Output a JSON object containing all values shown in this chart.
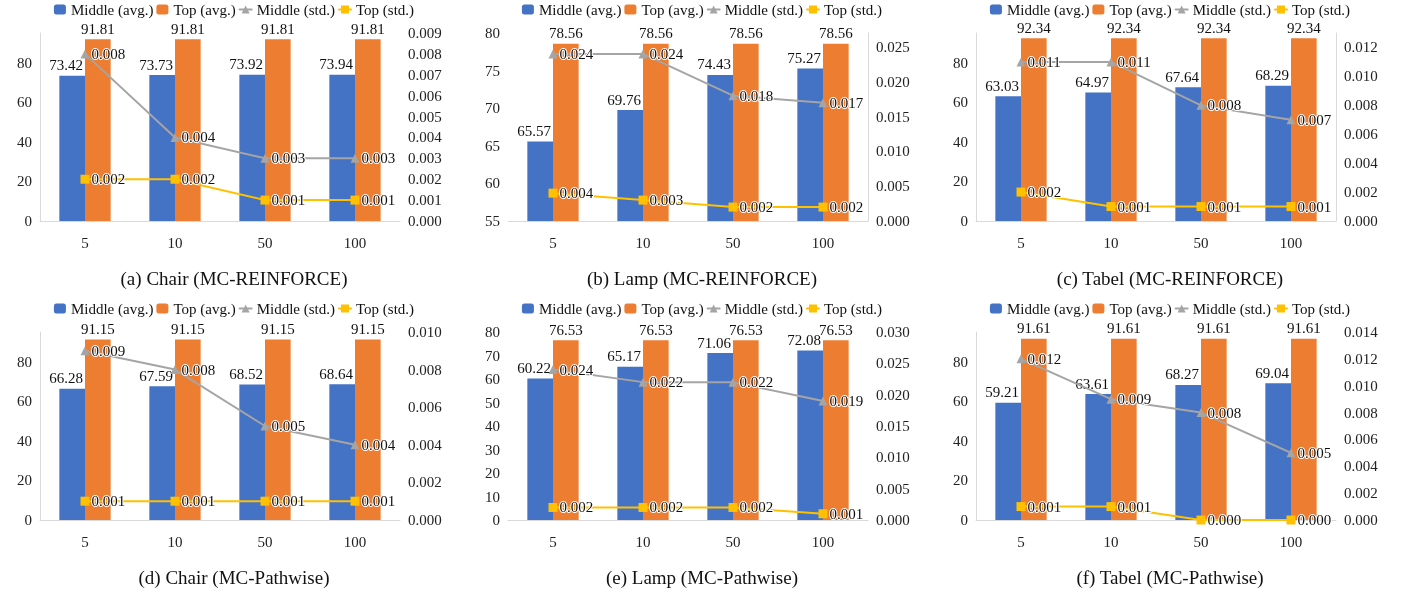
{
  "chart_data": [
    {
      "type": "bar",
      "title": "(a) Chair (MC-REINFORCE)",
      "categories": [
        "5",
        "10",
        "50",
        "100"
      ],
      "legend": "top",
      "data_labels": true,
      "ylim": [
        0,
        95
      ],
      "yticks": [
        0,
        20,
        40,
        60,
        80
      ],
      "y2lim": [
        0,
        0.009
      ],
      "y2ticks": [
        {
          "value": 0,
          "label": "0.000"
        },
        {
          "value": 0.001,
          "label": "0.001"
        },
        {
          "value": 0.002,
          "label": "0.002"
        },
        {
          "value": 0.003,
          "label": "0.003"
        },
        {
          "value": 0.004,
          "label": "0.004"
        },
        {
          "value": 0.005,
          "label": "0.005"
        },
        {
          "value": 0.006,
          "label": "0.006"
        },
        {
          "value": 0.007,
          "label": "0.007"
        },
        {
          "value": 0.008,
          "label": "0.008"
        },
        {
          "value": 0.009,
          "label": "0.009"
        }
      ],
      "series": [
        {
          "name": "Middle (avg.)",
          "color": "#4472c4",
          "values": [
            73.42,
            73.73,
            73.92,
            73.94
          ]
        },
        {
          "name": "Top (avg.)",
          "color": "#ed7d31",
          "values": [
            91.81,
            91.81,
            91.81,
            91.81
          ]
        },
        {
          "name": "Middle (std.)",
          "type": "line",
          "axis": "y2",
          "marker": "triangle",
          "color": "#a5a5a5",
          "values": [
            0.008,
            0.004,
            0.003,
            0.003
          ],
          "value_labels": [
            "0.008",
            "0.004",
            "0.003",
            "0.003"
          ]
        },
        {
          "name": "Top (std.)",
          "type": "line",
          "axis": "y2",
          "marker": "square",
          "color": "#ffc000",
          "values": [
            0.002,
            0.002,
            0.001,
            0.001
          ],
          "value_labels": [
            "0.002",
            "0.002",
            "0.001",
            "0.001"
          ]
        }
      ]
    },
    {
      "type": "bar",
      "title": "(b) Lamp (MC-REINFORCE)",
      "categories": [
        "5",
        "10",
        "50",
        "100"
      ],
      "legend": "top",
      "data_labels": true,
      "ylim": [
        55,
        80
      ],
      "yticks": [
        55,
        60,
        65,
        70,
        75,
        80
      ],
      "y2lim": [
        0,
        0.027
      ],
      "y2ticks": [
        {
          "value": 0,
          "label": "0.000"
        },
        {
          "value": 0.005,
          "label": "0.005"
        },
        {
          "value": 0.01,
          "label": "0.010"
        },
        {
          "value": 0.015,
          "label": "0.015"
        },
        {
          "value": 0.02,
          "label": "0.020"
        },
        {
          "value": 0.025,
          "label": "0.025"
        }
      ],
      "series": [
        {
          "name": "Middle (avg.)",
          "color": "#4472c4",
          "values": [
            65.57,
            69.76,
            74.43,
            75.27
          ]
        },
        {
          "name": "Top (avg.)",
          "color": "#ed7d31",
          "values": [
            78.56,
            78.56,
            78.56,
            78.56
          ]
        },
        {
          "name": "Middle (std.)",
          "type": "line",
          "axis": "y2",
          "marker": "triangle",
          "color": "#a5a5a5",
          "values": [
            0.024,
            0.024,
            0.018,
            0.017
          ],
          "value_labels": [
            "0.024",
            "0.024",
            "0.018",
            "0.017"
          ]
        },
        {
          "name": "Top (std.)",
          "type": "line",
          "axis": "y2",
          "marker": "square",
          "color": "#ffc000",
          "values": [
            0.004,
            0.003,
            0.002,
            0.002
          ],
          "value_labels": [
            "0.004",
            "0.003",
            "0.002",
            "0.002"
          ]
        }
      ]
    },
    {
      "type": "bar",
      "title": "(c) Tabel (MC-REINFORCE)",
      "categories": [
        "5",
        "10",
        "50",
        "100"
      ],
      "legend": "top",
      "data_labels": true,
      "ylim": [
        0,
        95
      ],
      "yticks": [
        0,
        20,
        40,
        60,
        80
      ],
      "y2lim": [
        0,
        0.013
      ],
      "y2ticks": [
        {
          "value": 0,
          "label": "0.000"
        },
        {
          "value": 0.002,
          "label": "0.002"
        },
        {
          "value": 0.004,
          "label": "0.004"
        },
        {
          "value": 0.006,
          "label": "0.006"
        },
        {
          "value": 0.008,
          "label": "0.008"
        },
        {
          "value": 0.01,
          "label": "0.010"
        },
        {
          "value": 0.012,
          "label": "0.012"
        }
      ],
      "series": [
        {
          "name": "Middle (avg.)",
          "color": "#4472c4",
          "values": [
            63.03,
            64.97,
            67.64,
            68.29
          ]
        },
        {
          "name": "Top (avg.)",
          "color": "#ed7d31",
          "values": [
            92.34,
            92.34,
            92.34,
            92.34
          ]
        },
        {
          "name": "Middle (std.)",
          "type": "line",
          "axis": "y2",
          "marker": "triangle",
          "color": "#a5a5a5",
          "values": [
            0.011,
            0.011,
            0.008,
            0.007
          ],
          "value_labels": [
            "0.011",
            "0.011",
            "0.008",
            "0.007"
          ]
        },
        {
          "name": "Top (std.)",
          "type": "line",
          "axis": "y2",
          "marker": "square",
          "color": "#ffc000",
          "values": [
            0.002,
            0.001,
            0.001,
            0.001
          ],
          "value_labels": [
            "0.002",
            "0.001",
            "0.001",
            "0.001"
          ]
        }
      ]
    },
    {
      "type": "bar",
      "title": "(d) Chair (MC-Pathwise)",
      "categories": [
        "5",
        "10",
        "50",
        "100"
      ],
      "legend": "top",
      "data_labels": true,
      "ylim": [
        0,
        95
      ],
      "yticks": [
        0,
        20,
        40,
        60,
        80
      ],
      "y2lim": [
        0,
        0.01
      ],
      "y2ticks": [
        {
          "value": 0,
          "label": "0.000"
        },
        {
          "value": 0.002,
          "label": "0.002"
        },
        {
          "value": 0.004,
          "label": "0.004"
        },
        {
          "value": 0.006,
          "label": "0.006"
        },
        {
          "value": 0.008,
          "label": "0.008"
        },
        {
          "value": 0.01,
          "label": "0.010"
        }
      ],
      "series": [
        {
          "name": "Middle (avg.)",
          "color": "#4472c4",
          "values": [
            66.28,
            67.59,
            68.52,
            68.64
          ]
        },
        {
          "name": "Top (avg.)",
          "color": "#ed7d31",
          "values": [
            91.15,
            91.15,
            91.15,
            91.15
          ]
        },
        {
          "name": "Middle (std.)",
          "type": "line",
          "axis": "y2",
          "marker": "triangle",
          "color": "#a5a5a5",
          "values": [
            0.009,
            0.008,
            0.005,
            0.004
          ],
          "value_labels": [
            "0.009",
            "0.008",
            "0.005",
            "0.004"
          ]
        },
        {
          "name": "Top (std.)",
          "type": "line",
          "axis": "y2",
          "marker": "square",
          "color": "#ffc000",
          "values": [
            0.001,
            0.001,
            0.001,
            0.001
          ],
          "value_labels": [
            "0.001",
            "0.001",
            "0.001",
            "0.001"
          ]
        }
      ]
    },
    {
      "type": "bar",
      "title": "(e) Lamp (MC-Pathwise)",
      "categories": [
        "5",
        "10",
        "50",
        "100"
      ],
      "legend": "top",
      "data_labels": true,
      "ylim": [
        0,
        80
      ],
      "yticks": [
        0,
        10,
        20,
        30,
        40,
        50,
        60,
        70,
        80
      ],
      "y2lim": [
        0,
        0.03
      ],
      "y2ticks": [
        {
          "value": 0,
          "label": "0.000"
        },
        {
          "value": 0.005,
          "label": "0.005"
        },
        {
          "value": 0.01,
          "label": "0.010"
        },
        {
          "value": 0.015,
          "label": "0.015"
        },
        {
          "value": 0.02,
          "label": "0.020"
        },
        {
          "value": 0.025,
          "label": "0.025"
        },
        {
          "value": 0.03,
          "label": "0.030"
        }
      ],
      "series": [
        {
          "name": "Middle (avg.)",
          "color": "#4472c4",
          "values": [
            60.22,
            65.17,
            71.06,
            72.08
          ]
        },
        {
          "name": "Top (avg.)",
          "color": "#ed7d31",
          "values": [
            76.53,
            76.53,
            76.53,
            76.53
          ]
        },
        {
          "name": "Middle (std.)",
          "type": "line",
          "axis": "y2",
          "marker": "triangle",
          "color": "#a5a5a5",
          "values": [
            0.024,
            0.022,
            0.022,
            0.019
          ],
          "value_labels": [
            "0.024",
            "0.022",
            "0.022",
            "0.019"
          ]
        },
        {
          "name": "Top (std.)",
          "type": "line",
          "axis": "y2",
          "marker": "square",
          "color": "#ffc000",
          "values": [
            0.002,
            0.002,
            0.002,
            0.001
          ],
          "value_labels": [
            "0.002",
            "0.002",
            "0.002",
            "0.001"
          ]
        }
      ]
    },
    {
      "type": "bar",
      "title": "(f) Tabel (MC-Pathwise)",
      "categories": [
        "5",
        "10",
        "50",
        "100"
      ],
      "legend": "top",
      "data_labels": true,
      "ylim": [
        0,
        95
      ],
      "yticks": [
        0,
        20,
        40,
        60,
        80
      ],
      "y2lim": [
        0,
        0.014
      ],
      "y2ticks": [
        {
          "value": 0,
          "label": "0.000"
        },
        {
          "value": 0.002,
          "label": "0.002"
        },
        {
          "value": 0.004,
          "label": "0.004"
        },
        {
          "value": 0.006,
          "label": "0.006"
        },
        {
          "value": 0.008,
          "label": "0.008"
        },
        {
          "value": 0.01,
          "label": "0.010"
        },
        {
          "value": 0.012,
          "label": "0.012"
        },
        {
          "value": 0.014,
          "label": "0.014"
        }
      ],
      "series": [
        {
          "name": "Middle (avg.)",
          "color": "#4472c4",
          "values": [
            59.21,
            63.61,
            68.27,
            69.04
          ]
        },
        {
          "name": "Top (avg.)",
          "color": "#ed7d31",
          "values": [
            91.61,
            91.61,
            91.61,
            91.61
          ]
        },
        {
          "name": "Middle (std.)",
          "type": "line",
          "axis": "y2",
          "marker": "triangle",
          "color": "#a5a5a5",
          "values": [
            0.012,
            0.009,
            0.008,
            0.005
          ],
          "value_labels": [
            "0.012",
            "0.009",
            "0.008",
            "0.005"
          ]
        },
        {
          "name": "Top (std.)",
          "type": "line",
          "axis": "y2",
          "marker": "square",
          "color": "#ffc000",
          "values": [
            0.001,
            0.001,
            0,
            0
          ],
          "value_labels": [
            "0.001",
            "0.001",
            "0.000",
            "0.000"
          ]
        }
      ]
    }
  ]
}
